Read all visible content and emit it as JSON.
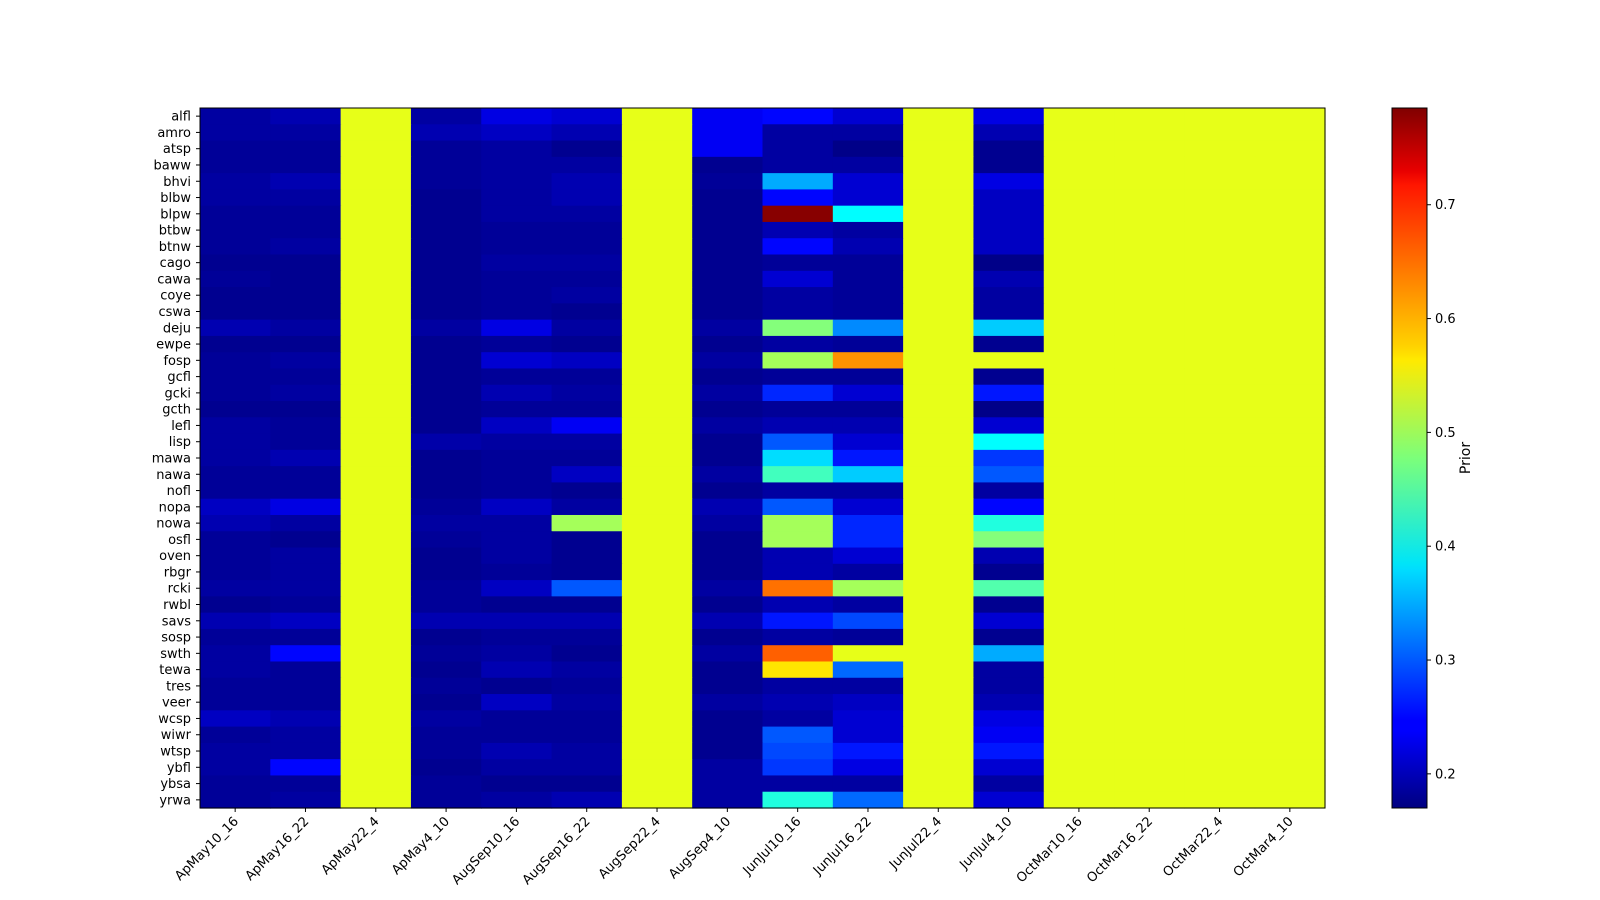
{
  "chart_data": {
    "type": "heatmap",
    "title": "",
    "xlabel": "",
    "ylabel": "",
    "colormap": "jet",
    "colorbar": {
      "label": "Prior",
      "vmin": 0.17,
      "vmax": 0.785,
      "ticks": [
        0.2,
        0.3,
        0.4,
        0.5,
        0.6,
        0.7
      ],
      "tick_labels": [
        "0.2",
        "0.3",
        "0.4",
        "0.5",
        "0.6",
        "0.7"
      ]
    },
    "columns": [
      "ApMay10_16",
      "ApMay16_22",
      "ApMay22_4",
      "ApMay4_10",
      "AugSep10_16",
      "AugSep16_22",
      "AugSep22_4",
      "AugSep4_10",
      "JunJul10_16",
      "JunJul16_22",
      "JunJul22_4",
      "JunJul4_10",
      "OctMar10_16",
      "OctMar16_22",
      "OctMar22_4",
      "OctMar4_10"
    ],
    "rows": [
      "alfl",
      "amro",
      "atsp",
      "baww",
      "bhvi",
      "blbw",
      "blpw",
      "btbw",
      "btnw",
      "cago",
      "cawa",
      "coye",
      "cswa",
      "deju",
      "ewpe",
      "fosp",
      "gcfl",
      "gcki",
      "gcth",
      "lefl",
      "lisp",
      "mawa",
      "nawa",
      "nofl",
      "nopa",
      "nowa",
      "osfl",
      "oven",
      "rbgr",
      "rcki",
      "rwbl",
      "savs",
      "sosp",
      "swth",
      "tewa",
      "tres",
      "veer",
      "wcsp",
      "wiwr",
      "wtsp",
      "ybfl",
      "ybsa",
      "yrwa"
    ],
    "values": [
      [
        0.19,
        0.2,
        0.54,
        0.19,
        0.23,
        0.22,
        0.54,
        0.24,
        0.25,
        0.22,
        0.54,
        0.23,
        0.54,
        0.54,
        0.54,
        0.54
      ],
      [
        0.19,
        0.19,
        0.54,
        0.2,
        0.21,
        0.2,
        0.54,
        0.24,
        0.19,
        0.19,
        0.54,
        0.2,
        0.54,
        0.54,
        0.54,
        0.54
      ],
      [
        0.185,
        0.185,
        0.54,
        0.185,
        0.19,
        0.18,
        0.54,
        0.24,
        0.19,
        0.175,
        0.54,
        0.18,
        0.54,
        0.54,
        0.54,
        0.54
      ],
      [
        0.185,
        0.185,
        0.54,
        0.185,
        0.19,
        0.19,
        0.54,
        0.18,
        0.19,
        0.19,
        0.54,
        0.18,
        0.54,
        0.54,
        0.54,
        0.54
      ],
      [
        0.19,
        0.2,
        0.54,
        0.185,
        0.19,
        0.2,
        0.54,
        0.185,
        0.35,
        0.22,
        0.54,
        0.23,
        0.54,
        0.54,
        0.54,
        0.54
      ],
      [
        0.19,
        0.19,
        0.54,
        0.18,
        0.19,
        0.2,
        0.54,
        0.18,
        0.25,
        0.22,
        0.54,
        0.21,
        0.54,
        0.54,
        0.54,
        0.54
      ],
      [
        0.185,
        0.185,
        0.54,
        0.18,
        0.19,
        0.19,
        0.54,
        0.18,
        0.78,
        0.4,
        0.54,
        0.21,
        0.54,
        0.54,
        0.54,
        0.54
      ],
      [
        0.185,
        0.185,
        0.54,
        0.18,
        0.185,
        0.185,
        0.54,
        0.18,
        0.2,
        0.19,
        0.54,
        0.21,
        0.54,
        0.54,
        0.54,
        0.54
      ],
      [
        0.185,
        0.19,
        0.54,
        0.18,
        0.185,
        0.185,
        0.54,
        0.18,
        0.25,
        0.2,
        0.54,
        0.21,
        0.54,
        0.54,
        0.54,
        0.54
      ],
      [
        0.18,
        0.18,
        0.54,
        0.18,
        0.19,
        0.19,
        0.54,
        0.18,
        0.185,
        0.185,
        0.54,
        0.175,
        0.54,
        0.54,
        0.54,
        0.54
      ],
      [
        0.185,
        0.18,
        0.54,
        0.18,
        0.185,
        0.185,
        0.54,
        0.18,
        0.22,
        0.185,
        0.54,
        0.2,
        0.54,
        0.54,
        0.54,
        0.54
      ],
      [
        0.18,
        0.18,
        0.54,
        0.18,
        0.185,
        0.19,
        0.54,
        0.18,
        0.19,
        0.185,
        0.54,
        0.19,
        0.54,
        0.54,
        0.54,
        0.54
      ],
      [
        0.18,
        0.18,
        0.54,
        0.18,
        0.185,
        0.18,
        0.54,
        0.18,
        0.19,
        0.185,
        0.54,
        0.19,
        0.54,
        0.54,
        0.54,
        0.54
      ],
      [
        0.2,
        0.19,
        0.54,
        0.19,
        0.23,
        0.19,
        0.54,
        0.19,
        0.48,
        0.33,
        0.54,
        0.37,
        0.54,
        0.54,
        0.54,
        0.54
      ],
      [
        0.18,
        0.18,
        0.54,
        0.18,
        0.185,
        0.18,
        0.54,
        0.18,
        0.19,
        0.185,
        0.54,
        0.18,
        0.54,
        0.54,
        0.54,
        0.54
      ],
      [
        0.185,
        0.19,
        0.54,
        0.18,
        0.22,
        0.21,
        0.54,
        0.19,
        0.5,
        0.62,
        0.54,
        0.54,
        0.54,
        0.54,
        0.54,
        0.54
      ],
      [
        0.185,
        0.185,
        0.54,
        0.18,
        0.185,
        0.185,
        0.54,
        0.18,
        0.185,
        0.185,
        0.54,
        0.18,
        0.54,
        0.54,
        0.54,
        0.54
      ],
      [
        0.185,
        0.19,
        0.54,
        0.18,
        0.2,
        0.19,
        0.54,
        0.19,
        0.27,
        0.22,
        0.54,
        0.26,
        0.54,
        0.54,
        0.54,
        0.54
      ],
      [
        0.18,
        0.18,
        0.54,
        0.18,
        0.185,
        0.185,
        0.54,
        0.18,
        0.185,
        0.185,
        0.54,
        0.175,
        0.54,
        0.54,
        0.54,
        0.54
      ],
      [
        0.19,
        0.185,
        0.54,
        0.18,
        0.21,
        0.24,
        0.54,
        0.19,
        0.2,
        0.2,
        0.54,
        0.22,
        0.54,
        0.54,
        0.54,
        0.54
      ],
      [
        0.19,
        0.185,
        0.54,
        0.195,
        0.19,
        0.19,
        0.54,
        0.18,
        0.3,
        0.22,
        0.54,
        0.4,
        0.54,
        0.54,
        0.54,
        0.54
      ],
      [
        0.19,
        0.2,
        0.54,
        0.18,
        0.185,
        0.185,
        0.54,
        0.18,
        0.38,
        0.26,
        0.54,
        0.28,
        0.54,
        0.54,
        0.54,
        0.54
      ],
      [
        0.185,
        0.185,
        0.54,
        0.18,
        0.185,
        0.21,
        0.54,
        0.19,
        0.44,
        0.37,
        0.54,
        0.3,
        0.54,
        0.54,
        0.54,
        0.54
      ],
      [
        0.185,
        0.185,
        0.54,
        0.18,
        0.185,
        0.18,
        0.54,
        0.18,
        0.19,
        0.19,
        0.54,
        0.19,
        0.54,
        0.54,
        0.54,
        0.54
      ],
      [
        0.21,
        0.23,
        0.54,
        0.185,
        0.21,
        0.19,
        0.54,
        0.2,
        0.3,
        0.22,
        0.54,
        0.25,
        0.54,
        0.54,
        0.54,
        0.54
      ],
      [
        0.2,
        0.19,
        0.54,
        0.19,
        0.19,
        0.5,
        0.54,
        0.19,
        0.5,
        0.27,
        0.54,
        0.42,
        0.54,
        0.54,
        0.54,
        0.54
      ],
      [
        0.185,
        0.18,
        0.54,
        0.185,
        0.19,
        0.18,
        0.54,
        0.18,
        0.5,
        0.27,
        0.54,
        0.48,
        0.54,
        0.54,
        0.54,
        0.54
      ],
      [
        0.185,
        0.19,
        0.54,
        0.18,
        0.19,
        0.18,
        0.54,
        0.18,
        0.2,
        0.22,
        0.54,
        0.2,
        0.54,
        0.54,
        0.54,
        0.54
      ],
      [
        0.185,
        0.19,
        0.54,
        0.18,
        0.185,
        0.18,
        0.54,
        0.18,
        0.2,
        0.19,
        0.54,
        0.18,
        0.54,
        0.54,
        0.54,
        0.54
      ],
      [
        0.19,
        0.19,
        0.54,
        0.185,
        0.21,
        0.3,
        0.54,
        0.19,
        0.64,
        0.5,
        0.54,
        0.45,
        0.54,
        0.54,
        0.54,
        0.54
      ],
      [
        0.18,
        0.185,
        0.54,
        0.185,
        0.18,
        0.18,
        0.54,
        0.18,
        0.2,
        0.19,
        0.54,
        0.18,
        0.54,
        0.54,
        0.54,
        0.54
      ],
      [
        0.2,
        0.21,
        0.54,
        0.2,
        0.2,
        0.2,
        0.54,
        0.2,
        0.26,
        0.29,
        0.54,
        0.22,
        0.54,
        0.54,
        0.54,
        0.54
      ],
      [
        0.185,
        0.185,
        0.54,
        0.18,
        0.185,
        0.185,
        0.54,
        0.18,
        0.19,
        0.185,
        0.54,
        0.18,
        0.54,
        0.54,
        0.54,
        0.54
      ],
      [
        0.19,
        0.25,
        0.54,
        0.185,
        0.19,
        0.18,
        0.54,
        0.19,
        0.65,
        0.54,
        0.54,
        0.35,
        0.54,
        0.54,
        0.54,
        0.54
      ],
      [
        0.19,
        0.185,
        0.54,
        0.18,
        0.2,
        0.19,
        0.54,
        0.18,
        0.57,
        0.31,
        0.54,
        0.19,
        0.54,
        0.54,
        0.54,
        0.54
      ],
      [
        0.185,
        0.185,
        0.54,
        0.185,
        0.18,
        0.185,
        0.54,
        0.18,
        0.19,
        0.19,
        0.54,
        0.19,
        0.54,
        0.54,
        0.54,
        0.54
      ],
      [
        0.185,
        0.185,
        0.54,
        0.18,
        0.21,
        0.19,
        0.54,
        0.19,
        0.2,
        0.21,
        0.54,
        0.2,
        0.54,
        0.54,
        0.54,
        0.54
      ],
      [
        0.21,
        0.2,
        0.54,
        0.19,
        0.185,
        0.185,
        0.54,
        0.18,
        0.19,
        0.22,
        0.54,
        0.23,
        0.54,
        0.54,
        0.54,
        0.54
      ],
      [
        0.185,
        0.19,
        0.54,
        0.185,
        0.185,
        0.185,
        0.54,
        0.18,
        0.3,
        0.22,
        0.54,
        0.24,
        0.54,
        0.54,
        0.54,
        0.54
      ],
      [
        0.19,
        0.19,
        0.54,
        0.185,
        0.2,
        0.19,
        0.54,
        0.18,
        0.29,
        0.26,
        0.54,
        0.26,
        0.54,
        0.54,
        0.54,
        0.54
      ],
      [
        0.19,
        0.25,
        0.54,
        0.18,
        0.19,
        0.19,
        0.54,
        0.19,
        0.28,
        0.23,
        0.54,
        0.22,
        0.54,
        0.54,
        0.54,
        0.54
      ],
      [
        0.185,
        0.185,
        0.54,
        0.185,
        0.18,
        0.18,
        0.54,
        0.19,
        0.19,
        0.19,
        0.54,
        0.19,
        0.54,
        0.54,
        0.54,
        0.54
      ],
      [
        0.185,
        0.19,
        0.54,
        0.185,
        0.19,
        0.2,
        0.54,
        0.19,
        0.42,
        0.31,
        0.54,
        0.22,
        0.54,
        0.54,
        0.54,
        0.54
      ]
    ]
  }
}
